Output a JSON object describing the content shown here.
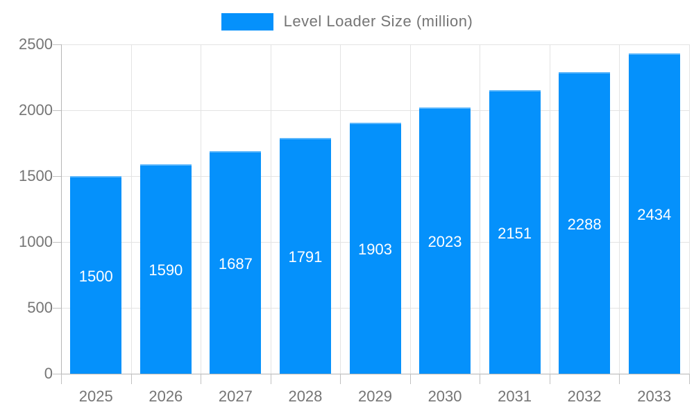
{
  "legend": {
    "label": "Level Loader Size (million)",
    "swatch_color": "#0591fb"
  },
  "colors": {
    "bar": "#0591fb",
    "bar_value_label": "#ffffff",
    "grid": "#e3e3e3",
    "axis": "#b5b5b5",
    "tick_text": "#757575",
    "background": "#ffffff"
  },
  "chart_data": {
    "type": "bar",
    "title": "Level Loader Size (million)",
    "series_name": "Level Loader Size (million)",
    "categories": [
      "2025",
      "2026",
      "2027",
      "2028",
      "2029",
      "2030",
      "2031",
      "2032",
      "2033"
    ],
    "values": [
      1500,
      1590,
      1687,
      1791,
      1903,
      2023,
      2151,
      2288,
      2434
    ],
    "data_labels_visible": true,
    "xlabel": "",
    "ylabel": "",
    "ylim": [
      0,
      2500
    ],
    "yticks": [
      0,
      500,
      1000,
      1500,
      2000,
      2500
    ],
    "grid": true,
    "legend_position": "top"
  }
}
